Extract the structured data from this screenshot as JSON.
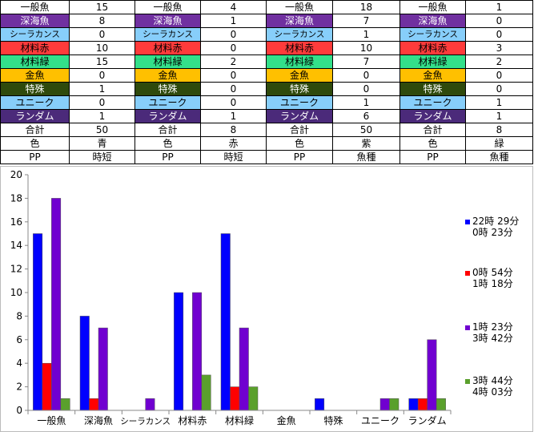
{
  "table": {
    "rows": [
      {
        "label": "一般魚",
        "color": "#ffffff",
        "fg": "#000000",
        "values": [
          "15",
          "4",
          "18",
          "1"
        ]
      },
      {
        "label": "深海魚",
        "color": "#7030a0",
        "fg": "#ffffff",
        "values": [
          "8",
          "1",
          "7",
          "0"
        ]
      },
      {
        "label": "シーラカンス",
        "color": "#87cefa",
        "fg": "#000000",
        "small": true,
        "values": [
          "0",
          "0",
          "1",
          "0"
        ]
      },
      {
        "label": "材料赤",
        "color": "#ff3b3b",
        "fg": "#000000",
        "values": [
          "10",
          "0",
          "10",
          "3"
        ]
      },
      {
        "label": "材料緑",
        "color": "#33e08a",
        "fg": "#000000",
        "values": [
          "15",
          "2",
          "7",
          "2"
        ]
      },
      {
        "label": "金魚",
        "color": "#ffc000",
        "fg": "#000000",
        "values": [
          "0",
          "0",
          "0",
          "0"
        ]
      },
      {
        "label": "特殊",
        "color": "#2f4a0c",
        "fg": "#ffffff",
        "values": [
          "1",
          "0",
          "0",
          "0"
        ]
      },
      {
        "label": "ユニーク",
        "color": "#87cefa",
        "fg": "#000000",
        "values": [
          "0",
          "0",
          "1",
          "1"
        ]
      },
      {
        "label": "ランダム",
        "color": "#4b2a7a",
        "fg": "#ffffff",
        "values": [
          "1",
          "1",
          "6",
          "1"
        ]
      },
      {
        "label": "合計",
        "color": "#ffffff",
        "fg": "#000000",
        "values": [
          "50",
          "8",
          "50",
          "8"
        ]
      },
      {
        "label": "色",
        "color": "#ffffff",
        "fg": "#000000",
        "values": [
          "青",
          "赤",
          "紫",
          "緑"
        ]
      },
      {
        "label": "PP",
        "color": "#ffffff",
        "fg": "#000000",
        "values": [
          "時短",
          "時短",
          "魚種",
          "魚種"
        ]
      }
    ]
  },
  "chart_data": {
    "type": "bar",
    "categories": [
      "一般魚",
      "深海魚",
      "シーラカンス",
      "材料赤",
      "材料緑",
      "金魚",
      "特殊",
      "ユニーク",
      "ランダム"
    ],
    "ylim": [
      0,
      20
    ],
    "yticks": [
      "0",
      "2",
      "4",
      "6",
      "8",
      "10",
      "12",
      "14",
      "16",
      "18",
      "20"
    ],
    "grid": false,
    "legend_position": "right",
    "title": "",
    "xlabel": "",
    "ylabel": "",
    "series": [
      {
        "line1": "22時 29分",
        "line2": "0時 23分",
        "color": "#0000ff",
        "values": [
          15,
          8,
          0,
          10,
          15,
          0,
          1,
          0,
          1
        ]
      },
      {
        "line1": "0時 54分",
        "line2": "1時 18分",
        "color": "#ff0000",
        "values": [
          4,
          1,
          0,
          0,
          2,
          0,
          0,
          0,
          1
        ]
      },
      {
        "line1": "1時 23分",
        "line2": "3時 42分",
        "color": "#7000d0",
        "values": [
          18,
          7,
          1,
          10,
          7,
          0,
          0,
          1,
          6
        ]
      },
      {
        "line1": "3時 44分",
        "line2": "4時 03分",
        "color": "#5aa02c",
        "values": [
          1,
          0,
          0,
          3,
          2,
          0,
          0,
          1,
          1
        ]
      }
    ]
  }
}
